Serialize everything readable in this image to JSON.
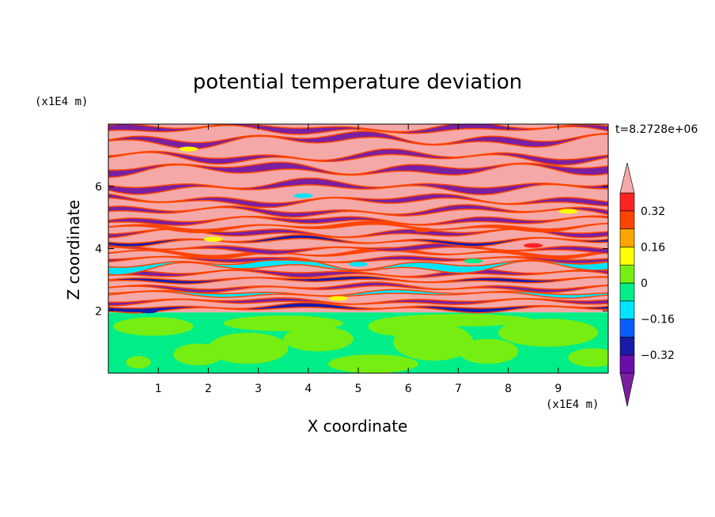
{
  "chart_data": {
    "type": "heatmap",
    "title": "potential temperature deviation",
    "xlabel": "X coordinate",
    "ylabel": "Z coordinate",
    "x_unit": "(x1E4 m)",
    "y_unit": "(x1E4 m)",
    "time_label": "t=8.2728e+06",
    "xlim": [
      0,
      10
    ],
    "ylim": [
      0,
      8
    ],
    "x_ticks": [
      1,
      2,
      3,
      4,
      5,
      6,
      7,
      8,
      9
    ],
    "y_ticks": [
      2,
      4,
      6
    ],
    "colorbar": {
      "levels": [
        -0.4,
        -0.32,
        -0.24,
        -0.16,
        -0.08,
        0,
        0.08,
        0.16,
        0.24,
        0.32,
        0.4
      ],
      "labels": [
        "-0.32",
        "-0.16",
        "0",
        "0.16",
        "0.32"
      ],
      "label_values": [
        -0.32,
        -0.16,
        0,
        0.16,
        0.32
      ],
      "colors": [
        "#6a0dad",
        "#1a1aa8",
        "#0b5cff",
        "#00e5ff",
        "#00ee88",
        "#77ee11",
        "#ffff00",
        "#ffa500",
        "#ff4400",
        "#ff2222"
      ],
      "under_color": "#7a1fa0",
      "over_color": "#f4a8a8"
    },
    "layers": [
      {
        "z_min": 0,
        "z_max": 1.95,
        "pattern": "near-neutral mix of -0.08 to 0.08",
        "colors": [
          "#00ee88",
          "#77ee11"
        ]
      },
      {
        "z_min": 1.95,
        "z_max": 5.5,
        "pattern": "thin alternating bands spanning full range",
        "colors": [
          "#f4a8a8",
          "#7a1fa0",
          "#1a1aa8",
          "#00e5ff",
          "#ff4400"
        ]
      },
      {
        "z_min": 5.5,
        "z_max": 8,
        "pattern": "alternating over-range (pink) and under-range (purple) bands",
        "colors": [
          "#f4a8a8",
          "#7a1fa0"
        ]
      }
    ]
  },
  "colors": {
    "pink": "#f4a8a8",
    "purple": "#7a1fa0",
    "navy": "#1a1aa8",
    "blue": "#0b5cff",
    "cyan": "#00e5ff",
    "sea": "#00ee88",
    "lime": "#77ee11",
    "yellow": "#ffff00",
    "orange": "#ffa500",
    "red": "#ff2222",
    "redorange": "#ff4400"
  }
}
